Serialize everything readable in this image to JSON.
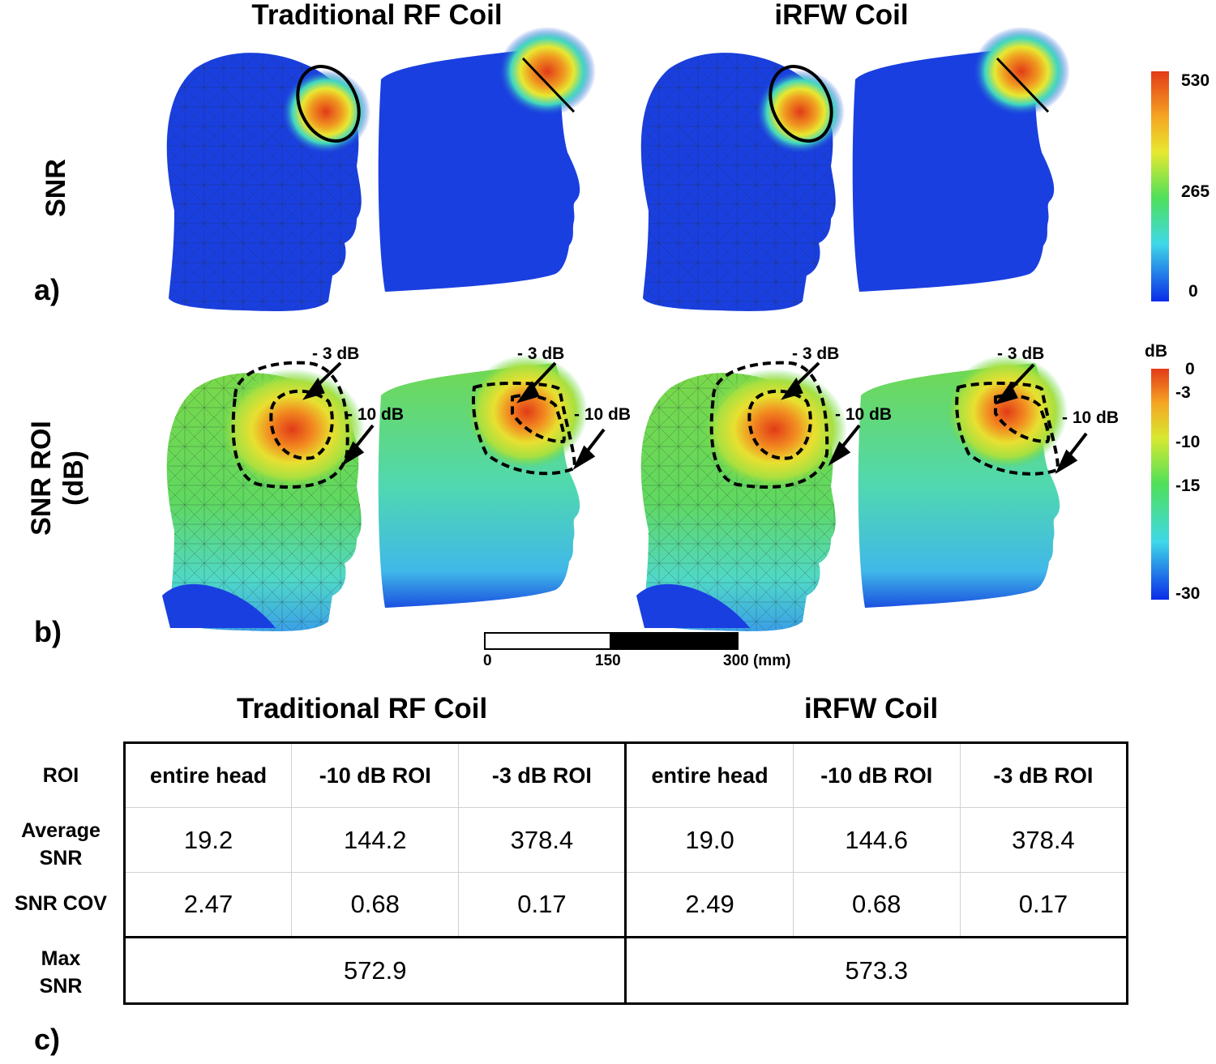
{
  "figure": {
    "titles": {
      "traditional": "Traditional RF Coil",
      "irfw": "iRFW Coil"
    },
    "rows": {
      "snr": "SNR",
      "snr_roi_line1": "SNR ROI",
      "snr_roi_line2": "(dB)"
    },
    "panels": {
      "a": "a)",
      "b": "b)",
      "c": "c)"
    },
    "colorbar_snr": {
      "ticks": [
        "530",
        "265",
        "0"
      ]
    },
    "colorbar_db": {
      "unit": "dB",
      "ticks": [
        "0",
        "-3",
        "-10",
        "-15",
        "-30"
      ]
    },
    "annotations": {
      "minus3": "- 3 dB",
      "minus10": "- 10 dB"
    },
    "scale_bar": {
      "ticks": [
        "0",
        "150",
        "300 (mm)"
      ]
    },
    "colors": {
      "low": "#1a3fe0",
      "mid": "#4fe05a",
      "high": "#e8391a"
    }
  },
  "table": {
    "titles": {
      "traditional": "Traditional RF Coil",
      "irfw": "iRFW Coil"
    },
    "row_labels": {
      "roi": "ROI",
      "avg_line1": "Average",
      "avg_line2": "SNR",
      "cov": "SNR COV",
      "max_line1": "Max",
      "max_line2": "SNR"
    },
    "headers": [
      "entire head",
      "-10 dB ROI",
      "-3 dB ROI",
      "entire head",
      "-10 dB ROI",
      "-3 dB ROI"
    ],
    "average_snr": [
      "19.2",
      "144.2",
      "378.4",
      "19.0",
      "144.6",
      "378.4"
    ],
    "snr_cov": [
      "2.47",
      "0.68",
      "0.17",
      "2.49",
      "0.68",
      "0.17"
    ],
    "max_snr": [
      "572.9",
      "573.3"
    ]
  }
}
